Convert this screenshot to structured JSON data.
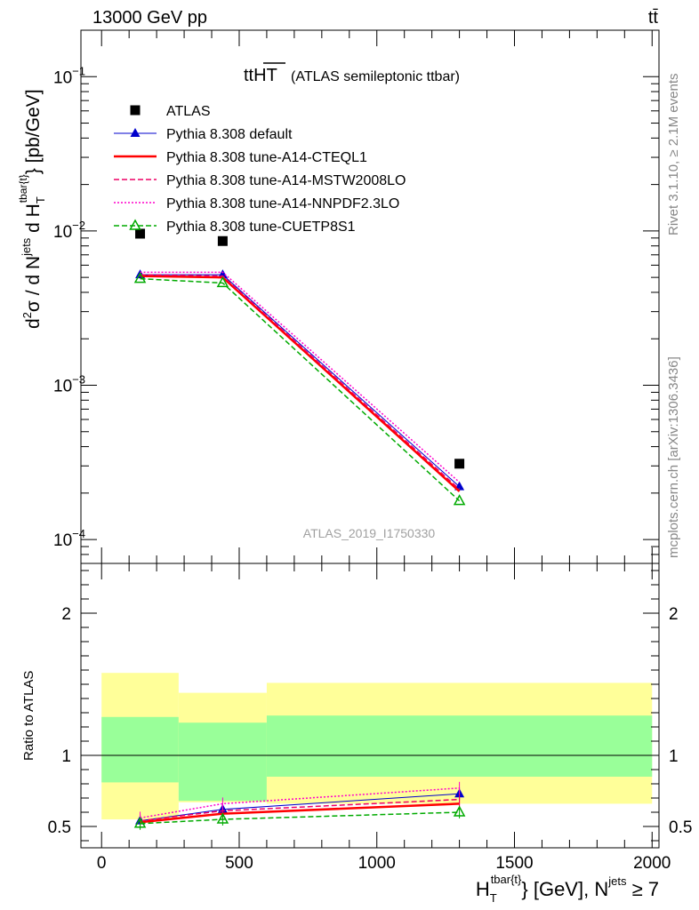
{
  "header": {
    "left": "13000 GeV pp",
    "right": "tt̄"
  },
  "side_labels": {
    "top": "Rivet 3.1.10, ≥ 2.1M events",
    "bottom": "mcplots.cern.ch [arXiv:1306.3436]"
  },
  "chart_data": [
    {
      "type": "line",
      "panel": "main",
      "title": "tt",
      "title_overlined": "HT",
      "subtitle": "(ATLAS semileptonic ttbar)",
      "watermark": "ATLAS_2019_I1750330",
      "ylabel": "d²σ / d N^jets d H_T^tbar{t} [pb/GeV]",
      "ylabel_parts": {
        "d2": "d",
        "sup2": "2",
        "sigma": "σ / d N",
        "jets": "jets",
        "dH": " d H",
        "T": "T",
        "tbar": "tbar{t}",
        "unit": "} [pb/GeV]"
      },
      "yscale": "log",
      "ylim": [
        7e-05,
        0.2
      ],
      "yticks": [
        {
          "value": 0.1,
          "base": "10",
          "exp": "−1"
        },
        {
          "value": 0.01,
          "base": "10",
          "exp": "−2"
        },
        {
          "value": 0.001,
          "base": "10",
          "exp": "−3"
        },
        {
          "value": 0.0001,
          "base": "10",
          "exp": "−4"
        }
      ],
      "xlim": [
        -75,
        2025
      ],
      "data": {
        "name": "ATLAS",
        "x": [
          140,
          440,
          1300
        ],
        "y": [
          0.0096,
          0.0086,
          0.00031
        ]
      },
      "series": [
        {
          "name": "Pythia 8.308 default",
          "color": "#0000cc",
          "style": "solid",
          "marker": "triangle-filled",
          "x": [
            140,
            440,
            1300
          ],
          "y": [
            0.0052,
            0.0052,
            0.00022
          ]
        },
        {
          "name": "Pythia 8.308 tune-A14-CTEQL1",
          "color": "#ff0000",
          "style": "solid-thick",
          "marker": "none",
          "x": [
            140,
            440,
            1300
          ],
          "y": [
            0.0051,
            0.005,
            0.000205
          ]
        },
        {
          "name": "Pythia 8.308 tune-A14-MSTW2008LO",
          "color": "#ee0066",
          "style": "dashed",
          "marker": "none",
          "x": [
            140,
            440,
            1300
          ],
          "y": [
            0.0052,
            0.0051,
            0.000212
          ]
        },
        {
          "name": "Pythia 8.308 tune-A14-NNPDF2.3LO",
          "color": "#ff00cc",
          "style": "dotted",
          "marker": "none",
          "x": [
            140,
            440,
            1300
          ],
          "y": [
            0.0054,
            0.0054,
            0.000235
          ]
        },
        {
          "name": "Pythia 8.308 tune-CUETP8S1",
          "color": "#00aa00",
          "style": "dashed",
          "marker": "triangle-open",
          "x": [
            140,
            440,
            1300
          ],
          "y": [
            0.0049,
            0.0046,
            0.000178
          ]
        }
      ]
    },
    {
      "type": "line",
      "panel": "ratio",
      "ylabel": "Ratio to ATLAS",
      "ylim": [
        0.35,
        2.35
      ],
      "yticks": [
        0.5,
        1,
        2
      ],
      "ytick_labels": [
        "0.5",
        "1",
        "2"
      ],
      "xlabel": "H_T^tbar{t} [GeV], N^jets ≥ 7",
      "xlabel_parts": {
        "H": "H",
        "T": "T",
        "tbar": "tbar{t}",
        "mid": "} [GeV], N",
        "jets": "jets",
        "tail": " ≥ 7"
      },
      "xlim": [
        -75,
        2025
      ],
      "xticks": [
        0,
        500,
        1000,
        1500,
        2000
      ],
      "xtick_labels": [
        "0",
        "500",
        "1000",
        "1500",
        "2000"
      ],
      "bands": [
        {
          "x0": 0,
          "x1": 280,
          "yellow": [
            0.55,
            1.58
          ],
          "green": [
            0.81,
            1.27
          ]
        },
        {
          "x0": 280,
          "x1": 600,
          "yellow": [
            0.67,
            1.44
          ],
          "green": [
            0.68,
            1.23
          ]
        },
        {
          "x0": 600,
          "x1": 2000,
          "yellow": [
            0.66,
            1.51
          ],
          "green": [
            0.85,
            1.28
          ]
        }
      ],
      "series": [
        {
          "name": "Pythia 8.308 default",
          "color": "#0000cc",
          "style": "solid",
          "marker": "triangle-filled",
          "x": [
            140,
            440,
            1300
          ],
          "y": [
            0.54,
            0.62,
            0.73
          ]
        },
        {
          "name": "Pythia 8.308 tune-A14-CTEQL1",
          "color": "#ff0000",
          "style": "solid-thick",
          "marker": "none",
          "x": [
            140,
            440,
            1300
          ],
          "y": [
            0.53,
            0.59,
            0.66
          ]
        },
        {
          "name": "Pythia 8.308 tune-A14-MSTW2008LO",
          "color": "#ee0066",
          "style": "dashed",
          "marker": "none",
          "x": [
            140,
            440,
            1300
          ],
          "y": [
            0.54,
            0.61,
            0.69
          ]
        },
        {
          "name": "Pythia 8.308 tune-A14-NNPDF2.3LO",
          "color": "#ff00cc",
          "style": "dotted",
          "marker": "none",
          "x": [
            140,
            440,
            1300
          ],
          "y": [
            0.56,
            0.66,
            0.77
          ]
        },
        {
          "name": "Pythia 8.308 tune-CUETP8S1",
          "color": "#00aa00",
          "style": "dashed",
          "marker": "triangle-open",
          "x": [
            140,
            440,
            1300
          ],
          "y": [
            0.52,
            0.55,
            0.6
          ]
        }
      ]
    }
  ]
}
